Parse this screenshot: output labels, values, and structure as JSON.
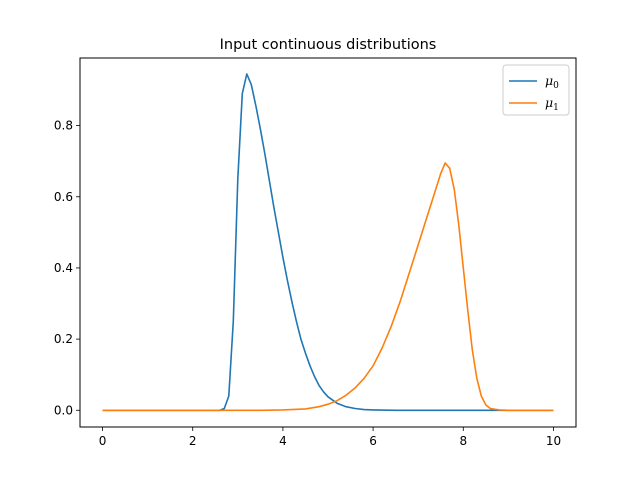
{
  "chart_data": {
    "type": "line",
    "title": "Input continuous distributions",
    "xlabel": "",
    "ylabel": "",
    "xlim": [
      -0.5,
      10.5
    ],
    "ylim": [
      -0.047,
      0.99
    ],
    "xticks": [
      0,
      2,
      4,
      6,
      8,
      10
    ],
    "xtick_labels": [
      "0",
      "2",
      "4",
      "6",
      "8",
      "10"
    ],
    "yticks": [
      0.0,
      0.2,
      0.4,
      0.6,
      0.8
    ],
    "ytick_labels": [
      "0.0",
      "0.2",
      "0.4",
      "0.6",
      "0.8"
    ],
    "grid": false,
    "legend": "top-right",
    "series": [
      {
        "name": "μ",
        "subscript": "0",
        "color": "#1f77b4",
        "x": [
          0,
          2.6,
          2.7,
          2.8,
          2.9,
          3.0,
          3.1,
          3.2,
          3.3,
          3.4,
          3.5,
          3.6,
          3.7,
          3.8,
          3.9,
          4.0,
          4.1,
          4.2,
          4.3,
          4.4,
          4.5,
          4.6,
          4.7,
          4.8,
          4.9,
          5.0,
          5.2,
          5.4,
          5.6,
          5.8,
          6.0,
          6.5,
          7.0,
          10
        ],
        "y": [
          0,
          0,
          0.005,
          0.04,
          0.25,
          0.65,
          0.89,
          0.945,
          0.915,
          0.855,
          0.79,
          0.72,
          0.645,
          0.57,
          0.5,
          0.43,
          0.365,
          0.305,
          0.25,
          0.2,
          0.16,
          0.125,
          0.095,
          0.07,
          0.052,
          0.038,
          0.02,
          0.01,
          0.005,
          0.002,
          0.001,
          0,
          0,
          0
        ]
      },
      {
        "name": "μ",
        "subscript": "1",
        "color": "#ff7f0e",
        "x": [
          0,
          3.5,
          4.0,
          4.5,
          4.8,
          5.0,
          5.2,
          5.4,
          5.6,
          5.8,
          6.0,
          6.2,
          6.4,
          6.6,
          6.8,
          7.0,
          7.2,
          7.4,
          7.5,
          7.6,
          7.7,
          7.8,
          7.9,
          8.0,
          8.1,
          8.2,
          8.3,
          8.4,
          8.5,
          8.6,
          8.8,
          9.0,
          10
        ],
        "y": [
          0,
          0,
          0.001,
          0.004,
          0.01,
          0.017,
          0.027,
          0.042,
          0.063,
          0.09,
          0.125,
          0.175,
          0.235,
          0.305,
          0.385,
          0.465,
          0.545,
          0.625,
          0.665,
          0.695,
          0.68,
          0.62,
          0.52,
          0.4,
          0.28,
          0.17,
          0.09,
          0.04,
          0.015,
          0.005,
          0.001,
          0,
          0
        ]
      }
    ]
  }
}
